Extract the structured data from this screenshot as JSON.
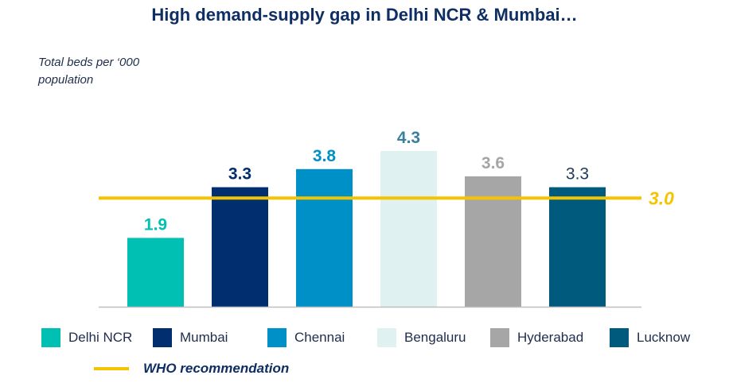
{
  "chart_data": {
    "type": "bar",
    "title": "High demand-supply gap in Delhi NCR & Mumbai…",
    "ylabel": "Total beds per ‘000 population",
    "categories": [
      "Delhi NCR",
      "Mumbai",
      "Chennai",
      "Bengaluru",
      "Hyderabad",
      "Lucknow"
    ],
    "values": [
      1.9,
      3.3,
      3.8,
      4.3,
      3.6,
      3.3
    ],
    "value_labels": [
      "1.9",
      "3.3",
      "3.8",
      "4.3",
      "3.6",
      "3.3"
    ],
    "colors": [
      "#00bfb3",
      "#002e6e",
      "#0090c8",
      "#dff1f0",
      "#a6a6a6",
      "#005a7e"
    ],
    "label_colors": [
      "#00bfb3",
      "#002e6e",
      "#0090c8",
      "#3a7ea0",
      "#a6a6a6",
      "#1f3a5a"
    ],
    "label_bold": [
      true,
      true,
      true,
      true,
      true,
      false
    ],
    "ylim": [
      0,
      4.3
    ],
    "grid": false,
    "legend_position": "bottom",
    "reference_line": {
      "value": 3.0,
      "label": "3.0",
      "legend_label": "WHO recommendation",
      "color": "#f5c400"
    }
  }
}
